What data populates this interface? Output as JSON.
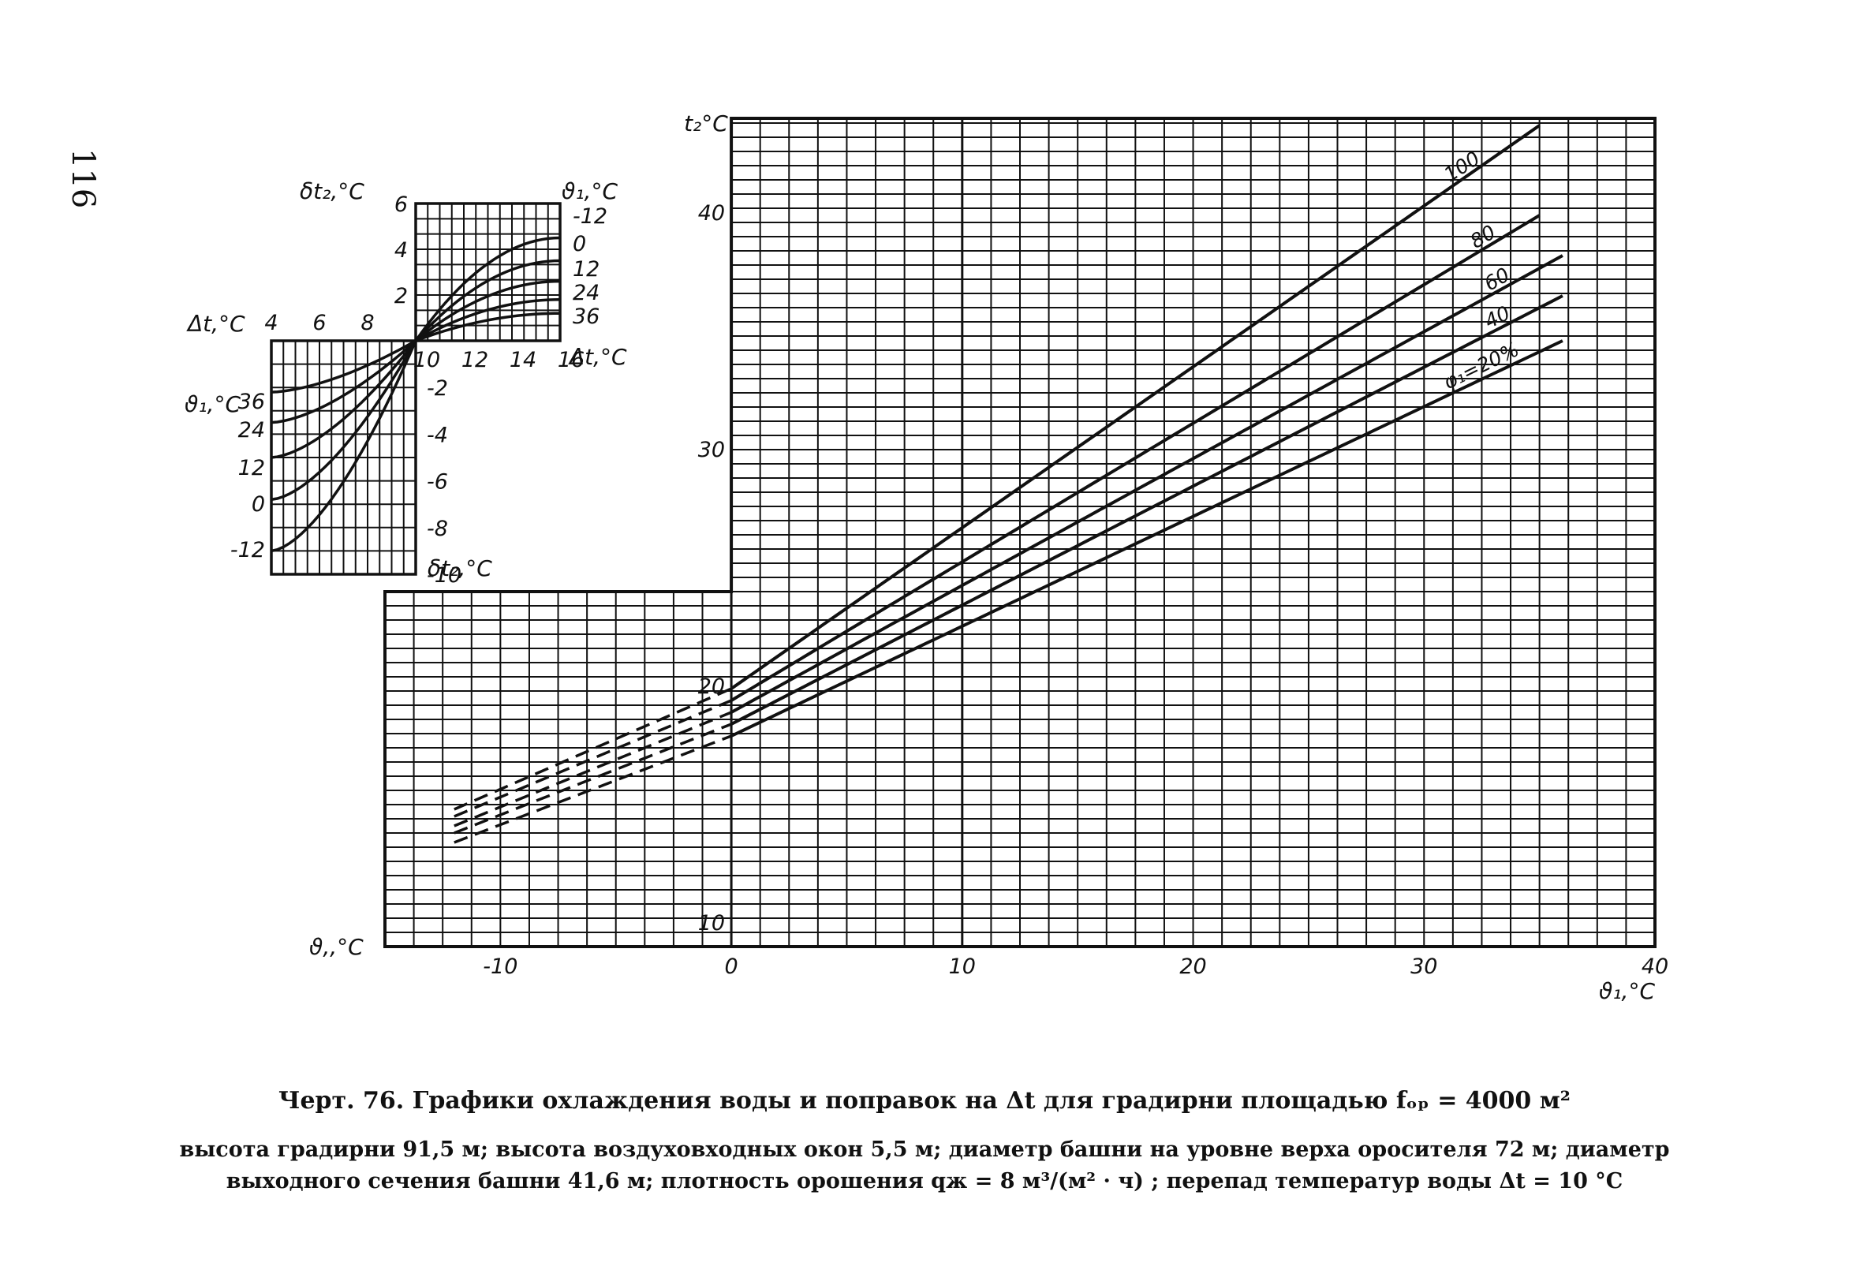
{
  "page_number": "116",
  "caption": {
    "title": "Черт. 76.  Графики охлаждения воды и поправок на Δt для градирни площадью fₒₚ = 4000 м²",
    "line1": "высота градирни 91,5 м; высота воздуховходных окон 5,5 м; диаметр башни на уровне верха оросителя 72 м; диаметр",
    "line2": "выходного сечения башни 41,6 м; плотность орошения qж = 8 м³/(м² · ч) ; перепад температур воды Δt = 10 °С"
  },
  "chart_data": [
    {
      "type": "line",
      "xlabel": "ϑ₁,°C",
      "xlabel_left": "ϑ,,°C",
      "ylabel": "t₂°C",
      "x_ticks": [
        "-10",
        "0",
        "10",
        "20",
        "30",
        "40"
      ],
      "y_ticks": [
        "10",
        "20",
        "30",
        "40"
      ],
      "xlim": [
        -15,
        40
      ],
      "ylim": [
        9,
        44
      ],
      "series": [
        {
          "name": "100",
          "x": [
            -12,
            0,
            35
          ],
          "y": [
            14.8,
            19.9,
            43.7
          ]
        },
        {
          "name": "80",
          "x": [
            -12,
            0,
            35
          ],
          "y": [
            14.5,
            19.4,
            39.9
          ]
        },
        {
          "name": "60",
          "x": [
            -12,
            0,
            36
          ],
          "y": [
            14.1,
            18.9,
            38.2
          ]
        },
        {
          "name": "40",
          "x": [
            -12,
            0,
            36
          ],
          "y": [
            13.8,
            18.4,
            36.5
          ]
        },
        {
          "name": "φ₁=20%",
          "x": [
            -12,
            0,
            36
          ],
          "y": [
            13.4,
            17.9,
            34.6
          ]
        }
      ],
      "dashed_below_x": 0,
      "grid": true
    },
    {
      "type": "line",
      "xlabel": "Δt,°C",
      "ylabel": "δt₂,°C",
      "ylabel_lower": "δt₂,°C",
      "x_ticks_left": [
        "4",
        "6",
        "8"
      ],
      "x_ticks_right": [
        "10",
        "12",
        "14",
        "16"
      ],
      "y_ticks_upper": [
        "6",
        "4",
        "2"
      ],
      "y_ticks_lower": [
        "-2",
        "-4",
        "-6",
        "-8",
        "-10"
      ],
      "xlim": [
        4,
        16
      ],
      "ylim": [
        -10,
        6
      ],
      "param_label": "ϑ₁,°C",
      "param_values_right": [
        "-12",
        "0",
        "12",
        "24",
        "36"
      ],
      "param_values_left": [
        "36",
        "24",
        "12",
        "0",
        "-12"
      ],
      "series": [
        {
          "name": "-12",
          "x": [
            4,
            10,
            16
          ],
          "y": [
            -9.0,
            0,
            4.5
          ]
        },
        {
          "name": "0",
          "x": [
            4,
            10,
            16
          ],
          "y": [
            -6.8,
            0,
            3.5
          ]
        },
        {
          "name": "12",
          "x": [
            4,
            10,
            16
          ],
          "y": [
            -5.0,
            0,
            2.6
          ]
        },
        {
          "name": "24",
          "x": [
            4,
            10,
            16
          ],
          "y": [
            -3.5,
            0,
            1.8
          ]
        },
        {
          "name": "36",
          "x": [
            4,
            10,
            16
          ],
          "y": [
            -2.2,
            0,
            1.2
          ]
        }
      ],
      "grid": true
    }
  ]
}
